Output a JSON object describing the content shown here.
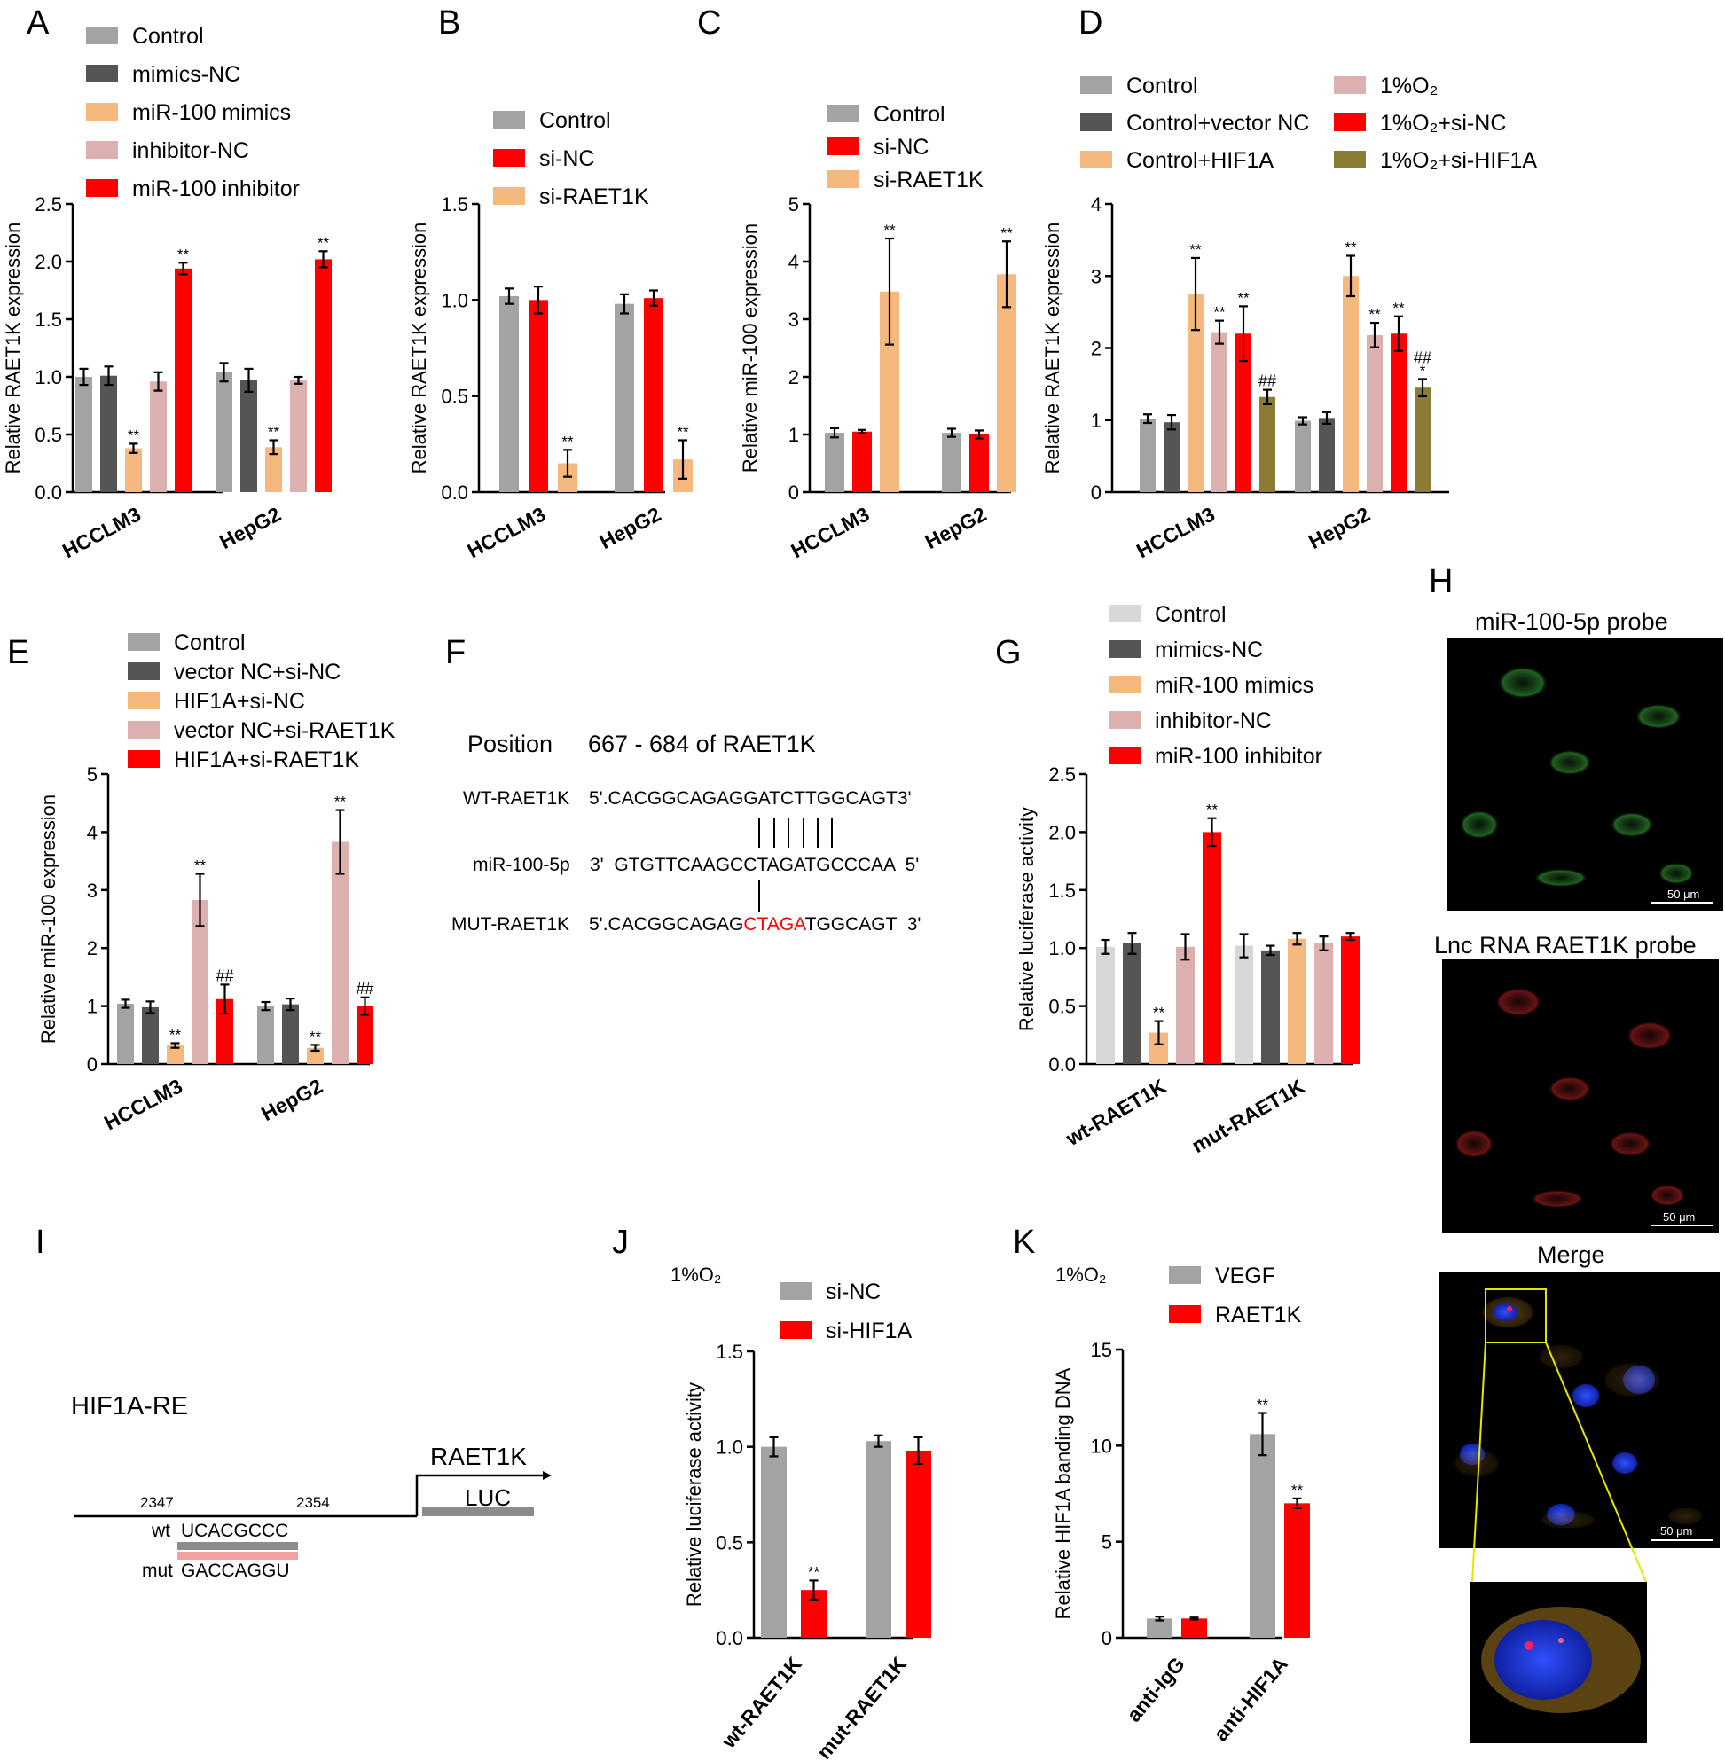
{
  "colors": {
    "gray": "#a3a3a5",
    "dark": "#555555",
    "orange": "#f5b97f",
    "pink": "#ddb0b0",
    "red": "#ff0000",
    "light": "#d8d8d8",
    "olive": "#8b7c35",
    "salmon": "#f2a0a0",
    "seq_red": "#ff0000"
  },
  "chart_data": [
    {
      "id": "A",
      "type": "bar",
      "label": "A",
      "ylabel": "Relative  RAET1K expression",
      "ylim": [
        0,
        2.5
      ],
      "yticks": [
        "0.0",
        "0.5",
        "1.0",
        "1.5",
        "2.0",
        "2.5"
      ],
      "categories": [
        "HCCLM3",
        "HepG2"
      ],
      "series": [
        {
          "name": "Control",
          "color": "gray",
          "values": [
            1.0,
            1.04
          ],
          "errors": [
            0.07,
            0.08
          ],
          "sig": [
            "",
            ""
          ]
        },
        {
          "name": "mimics-NC",
          "color": "dark",
          "values": [
            1.01,
            0.97
          ],
          "errors": [
            0.08,
            0.1
          ],
          "sig": [
            "",
            ""
          ]
        },
        {
          "name": "miR-100 mimics",
          "color": "orange",
          "values": [
            0.38,
            0.39
          ],
          "errors": [
            0.04,
            0.06
          ],
          "sig": [
            "**",
            "**"
          ]
        },
        {
          "name": "inhibitor-NC",
          "color": "pink",
          "values": [
            0.96,
            0.97
          ],
          "errors": [
            0.08,
            0.03
          ],
          "sig": [
            "",
            ""
          ]
        },
        {
          "name": "miR-100 inhibitor",
          "color": "red",
          "values": [
            1.94,
            2.02
          ],
          "errors": [
            0.05,
            0.07
          ],
          "sig": [
            "**",
            "**"
          ]
        }
      ]
    },
    {
      "id": "B",
      "type": "bar",
      "label": "B",
      "ylabel": "Relative  RAET1K expression",
      "ylim": [
        0,
        1.5
      ],
      "yticks": [
        "0.0",
        "0.5",
        "1.0",
        "1.5"
      ],
      "categories": [
        "HCCLM3",
        "HepG2"
      ],
      "series": [
        {
          "name": "Control",
          "color": "gray",
          "values": [
            1.02,
            0.98
          ],
          "errors": [
            0.04,
            0.05
          ],
          "sig": [
            "",
            ""
          ]
        },
        {
          "name": "si-NC",
          "color": "red",
          "values": [
            1.0,
            1.01
          ],
          "errors": [
            0.07,
            0.04
          ],
          "sig": [
            "",
            ""
          ]
        },
        {
          "name": "si-RAET1K",
          "color": "orange",
          "values": [
            0.15,
            0.17
          ],
          "errors": [
            0.07,
            0.1
          ],
          "sig": [
            "**",
            "**"
          ]
        }
      ]
    },
    {
      "id": "C",
      "type": "bar",
      "label": "C",
      "ylabel": "Relative  miR-100 expression",
      "ylim": [
        0,
        5
      ],
      "yticks": [
        "0",
        "1",
        "2",
        "3",
        "4",
        "5"
      ],
      "categories": [
        "HCCLM3",
        "HepG2"
      ],
      "series": [
        {
          "name": "Control",
          "color": "gray",
          "values": [
            1.03,
            1.03
          ],
          "errors": [
            0.08,
            0.07
          ],
          "sig": [
            "",
            ""
          ]
        },
        {
          "name": "si-NC",
          "color": "red",
          "values": [
            1.05,
            1.0
          ],
          "errors": [
            0.03,
            0.07
          ],
          "sig": [
            "",
            ""
          ]
        },
        {
          "name": "si-RAET1K",
          "color": "orange",
          "values": [
            3.48,
            3.78
          ],
          "errors": [
            0.92,
            0.57
          ],
          "sig": [
            "**",
            "**"
          ]
        }
      ]
    },
    {
      "id": "D",
      "type": "bar",
      "label": "D",
      "ylabel": "Relative  RAET1K expression",
      "ylim": [
        0,
        4
      ],
      "yticks": [
        "0",
        "1",
        "2",
        "3",
        "4"
      ],
      "categories": [
        "HCCLM3",
        "HepG2"
      ],
      "series": [
        {
          "name": "Control",
          "color": "gray",
          "values": [
            1.02,
            0.99
          ],
          "errors": [
            0.06,
            0.05
          ],
          "sig": [
            "",
            ""
          ]
        },
        {
          "name": "Control+vector NC",
          "color": "dark",
          "values": [
            0.97,
            1.03
          ],
          "errors": [
            0.1,
            0.08
          ],
          "sig": [
            "",
            ""
          ]
        },
        {
          "name": "Control+HIF1A",
          "color": "orange",
          "values": [
            2.75,
            3.0
          ],
          "errors": [
            0.5,
            0.28
          ],
          "sig": [
            "**",
            "**"
          ]
        },
        {
          "name": "1%O₂",
          "color": "pink",
          "values": [
            2.22,
            2.18
          ],
          "errors": [
            0.16,
            0.17
          ],
          "sig": [
            "**",
            "**"
          ]
        },
        {
          "name": "1%O₂+si-NC",
          "color": "red",
          "values": [
            2.2,
            2.2
          ],
          "errors": [
            0.38,
            0.24
          ],
          "sig": [
            "**",
            "**"
          ]
        },
        {
          "name": "1%O₂+si-HIF1A",
          "color": "olive",
          "values": [
            1.32,
            1.45
          ],
          "errors": [
            0.1,
            0.12
          ],
          "sig": [
            "##",
            "##\n*"
          ]
        }
      ]
    },
    {
      "id": "E",
      "type": "bar",
      "label": "E",
      "ylabel": "Relative  miR-100 expression",
      "ylim": [
        0,
        5
      ],
      "yticks": [
        "0",
        "1",
        "2",
        "3",
        "4",
        "5"
      ],
      "categories": [
        "HCCLM3",
        "HepG2"
      ],
      "series": [
        {
          "name": "Control",
          "color": "gray",
          "values": [
            1.04,
            1.0
          ],
          "errors": [
            0.07,
            0.07
          ],
          "sig": [
            "",
            ""
          ]
        },
        {
          "name": "vector NC+si-NC",
          "color": "dark",
          "values": [
            0.98,
            1.03
          ],
          "errors": [
            0.1,
            0.1
          ],
          "sig": [
            "",
            ""
          ]
        },
        {
          "name": "HIF1A+si-NC",
          "color": "orange",
          "values": [
            0.32,
            0.28
          ],
          "errors": [
            0.04,
            0.05
          ],
          "sig": [
            "**",
            "**"
          ]
        },
        {
          "name": "vector NC+si-RAET1K",
          "color": "pink",
          "values": [
            2.83,
            3.83
          ],
          "errors": [
            0.45,
            0.55
          ],
          "sig": [
            "**",
            "**"
          ]
        },
        {
          "name": "HIF1A+si-RAET1K",
          "color": "red",
          "values": [
            1.12,
            1.0
          ],
          "errors": [
            0.25,
            0.15
          ],
          "sig": [
            "##",
            "##"
          ]
        }
      ]
    },
    {
      "id": "G",
      "type": "bar",
      "label": "G",
      "ylabel": "Relative luciferase activity",
      "ylim": [
        0,
        2.5
      ],
      "yticks": [
        "0.0",
        "0.5",
        "1.0",
        "1.5",
        "2.0",
        "2.5"
      ],
      "categories": [
        "wt-RAET1K",
        "mut-RAET1K"
      ],
      "series": [
        {
          "name": "Control",
          "color": "light",
          "values": [
            1.01,
            1.02
          ],
          "errors": [
            0.06,
            0.1
          ],
          "sig": [
            "",
            ""
          ]
        },
        {
          "name": "mimics-NC",
          "color": "dark",
          "values": [
            1.04,
            0.98
          ],
          "errors": [
            0.09,
            0.04
          ],
          "sig": [
            "",
            ""
          ]
        },
        {
          "name": "miR-100 mimics",
          "color": "orange",
          "values": [
            0.27,
            1.08
          ],
          "errors": [
            0.1,
            0.05
          ],
          "sig": [
            "**",
            ""
          ]
        },
        {
          "name": "inhibitor-NC",
          "color": "pink",
          "values": [
            1.01,
            1.04
          ],
          "errors": [
            0.11,
            0.06
          ],
          "sig": [
            "",
            ""
          ]
        },
        {
          "name": "miR-100 inhibitor",
          "color": "red",
          "values": [
            2.0,
            1.1
          ],
          "errors": [
            0.12,
            0.03
          ],
          "sig": [
            "**",
            ""
          ]
        }
      ]
    },
    {
      "id": "J",
      "type": "bar",
      "label": "J",
      "condition": "1%O₂",
      "ylabel": "Relative luciferase activity",
      "ylim": [
        0,
        1.5
      ],
      "yticks": [
        "0.0",
        "0.5",
        "1.0",
        "1.5"
      ],
      "categories": [
        "wt-RAET1K",
        "mut-RAET1K"
      ],
      "series": [
        {
          "name": "si-NC",
          "color": "gray",
          "values": [
            1.0,
            1.03
          ],
          "errors": [
            0.05,
            0.03
          ],
          "sig": [
            "",
            ""
          ]
        },
        {
          "name": "si-HIF1A",
          "color": "red",
          "values": [
            0.25,
            0.98
          ],
          "errors": [
            0.05,
            0.07
          ],
          "sig": [
            "**",
            ""
          ]
        }
      ]
    },
    {
      "id": "K",
      "type": "bar",
      "label": "K",
      "condition": "1%O₂",
      "ylabel": "Relative HIF1A banding DNA",
      "ylim": [
        0,
        15
      ],
      "yticks": [
        "0",
        "5",
        "10",
        "15"
      ],
      "categories": [
        "anti-IgG",
        "anti-HIF1A"
      ],
      "series": [
        {
          "name": "VEGF",
          "color": "gray",
          "values": [
            1.0,
            10.6
          ],
          "errors": [
            0.1,
            1.1
          ],
          "sig": [
            "",
            "**"
          ]
        },
        {
          "name": "RAET1K",
          "color": "red",
          "values": [
            1.0,
            7.0
          ],
          "errors": [
            0.05,
            0.25
          ],
          "sig": [
            "",
            "**"
          ]
        }
      ]
    }
  ],
  "panelF": {
    "label": "F",
    "position_label": "Position",
    "position_range": "667 - 684 of RAET1K",
    "wt_label": "WT-RAET1K",
    "wt_seq": "5'.CACGGCAGAGGATCTTGGCAGT3'",
    "mir_label": "miR-100-5p",
    "mir_seq": "3'  GTGTTCAAGCCTAGATGCCCAA  5'",
    "mut_label": "MUT-RAET1K",
    "mut_seq_a": "5'.CACGGCAGAG",
    "mut_seq_b": "CTAGA",
    "mut_seq_c": "TGGCAGT  3'"
  },
  "panelI": {
    "label": "I",
    "re_label": "HIF1A-RE",
    "pos_start": "2347",
    "pos_end": "2354",
    "wt_label": "wt",
    "wt_seq": "UCACGCCC",
    "mut_label": "mut",
    "mut_seq": "GACCAGGU",
    "gene": "RAET1K",
    "reporter": "LUC"
  },
  "panelH": {
    "label": "H",
    "title1": "miR-100-5p probe",
    "title2": "Lnc RNA RAET1K probe",
    "title3": "Merge",
    "scale": "50 μm"
  }
}
